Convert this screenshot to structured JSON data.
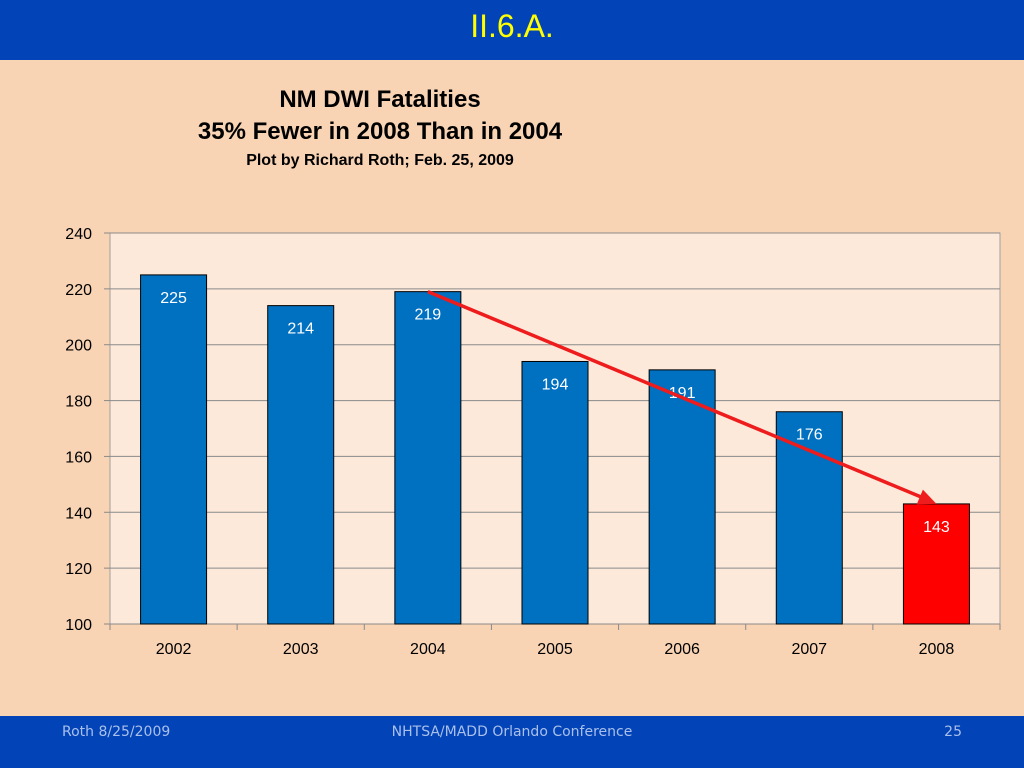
{
  "slide": {
    "id_label": "II.6.A.",
    "footer_left": "Roth 8/25/2009",
    "footer_center": "NHTSA/MADD Orlando Conference",
    "footer_right": "25",
    "colors": {
      "bar_band": "#0343b8",
      "background": "#f8d3b4",
      "plot_bg": "#fde9d9",
      "id_label": "#ffff00"
    }
  },
  "chart_data": {
    "type": "bar",
    "title": "NM DWI Fatalities",
    "subtitle": "35% Fewer in 2008 Than in 2004",
    "credit": "Plot by Richard Roth;  Feb. 25, 2009",
    "categories": [
      "2002",
      "2003",
      "2004",
      "2005",
      "2006",
      "2007",
      "2008"
    ],
    "values": [
      225,
      214,
      219,
      194,
      191,
      176,
      143
    ],
    "data_labels": [
      "225",
      "214",
      "219",
      "194",
      "191",
      "176",
      "143"
    ],
    "bar_colors": [
      "#0070c0",
      "#0070c0",
      "#0070c0",
      "#0070c0",
      "#0070c0",
      "#0070c0",
      "#ff0000"
    ],
    "ylim": [
      100,
      240
    ],
    "yticks": [
      100,
      120,
      140,
      160,
      180,
      200,
      220,
      240
    ],
    "grid": true,
    "legend": "none",
    "annotations": [
      {
        "type": "arrow",
        "color": "#ee1c1c",
        "from": {
          "x": "2004",
          "y": 219
        },
        "to": {
          "x": "2008",
          "y": 143
        }
      }
    ]
  }
}
